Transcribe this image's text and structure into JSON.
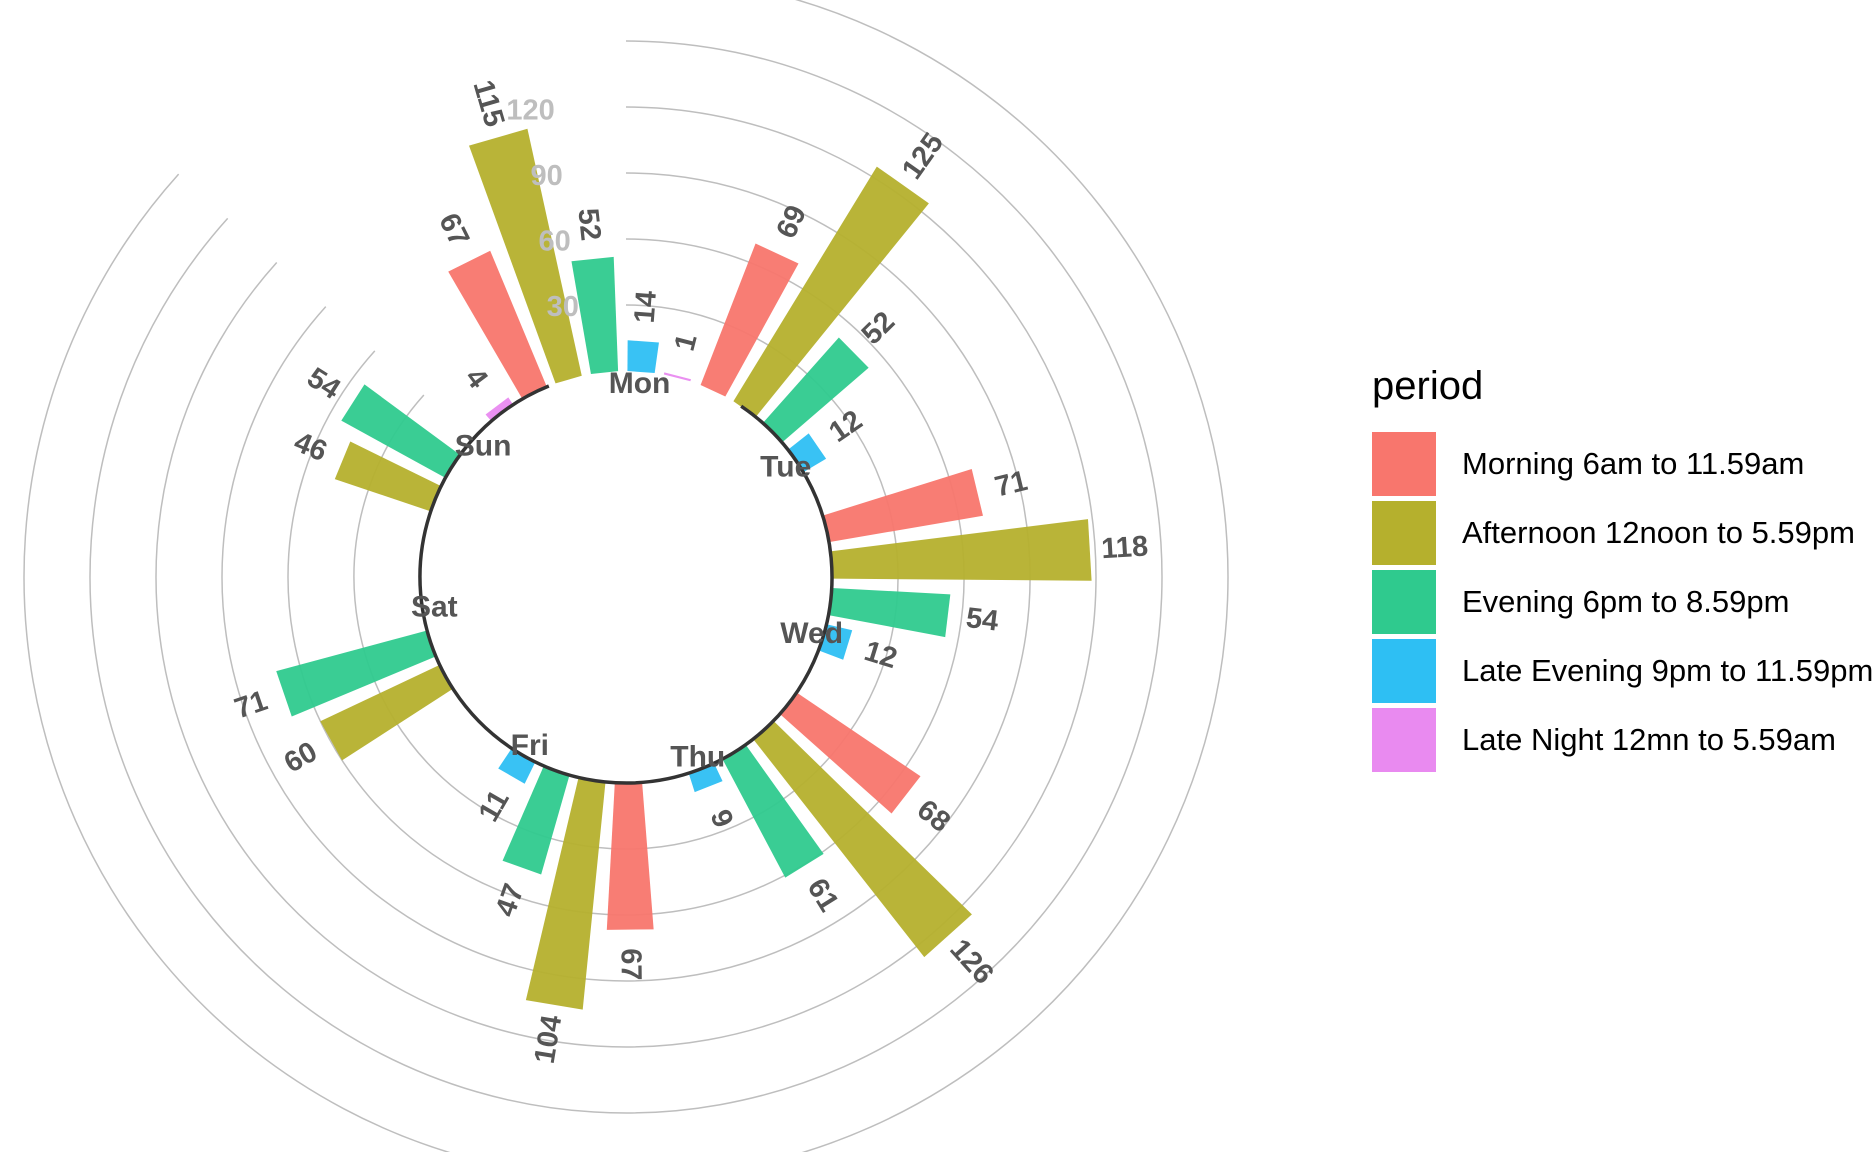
{
  "chart_data": {
    "type": "bar",
    "coordinate_system": "polar",
    "days": [
      "Mon",
      "Tue",
      "Wed",
      "Thu",
      "Fri",
      "Sat",
      "Sun"
    ],
    "radial_ticks": [
      "30",
      "60",
      "90",
      "120"
    ],
    "radial_tick_values": [
      30,
      60,
      90,
      120
    ],
    "legend": {
      "title": "period",
      "position": "right"
    },
    "grid": true,
    "series": [
      {
        "name": "Morning 6am to 11.59am",
        "color": "#F8766D",
        "values": [
          67,
          69,
          71,
          68,
          67,
          null,
          null
        ]
      },
      {
        "name": "Afternoon 12noon to 5.59pm",
        "color": "#B5B02D",
        "values": [
          115,
          125,
          118,
          126,
          104,
          60,
          46
        ]
      },
      {
        "name": "Evening 6pm to 8.59pm",
        "color": "#2FCA8E",
        "values": [
          52,
          52,
          54,
          61,
          47,
          71,
          54
        ]
      },
      {
        "name": "Late Evening 9pm to 11.59pm",
        "color": "#2EBFF3",
        "values": [
          14,
          12,
          12,
          9,
          11,
          null,
          null
        ]
      },
      {
        "name": "Late Night 12mn to 5.59am",
        "color": "#E98AF0",
        "values": [
          1,
          null,
          null,
          null,
          null,
          null,
          4
        ]
      }
    ]
  }
}
